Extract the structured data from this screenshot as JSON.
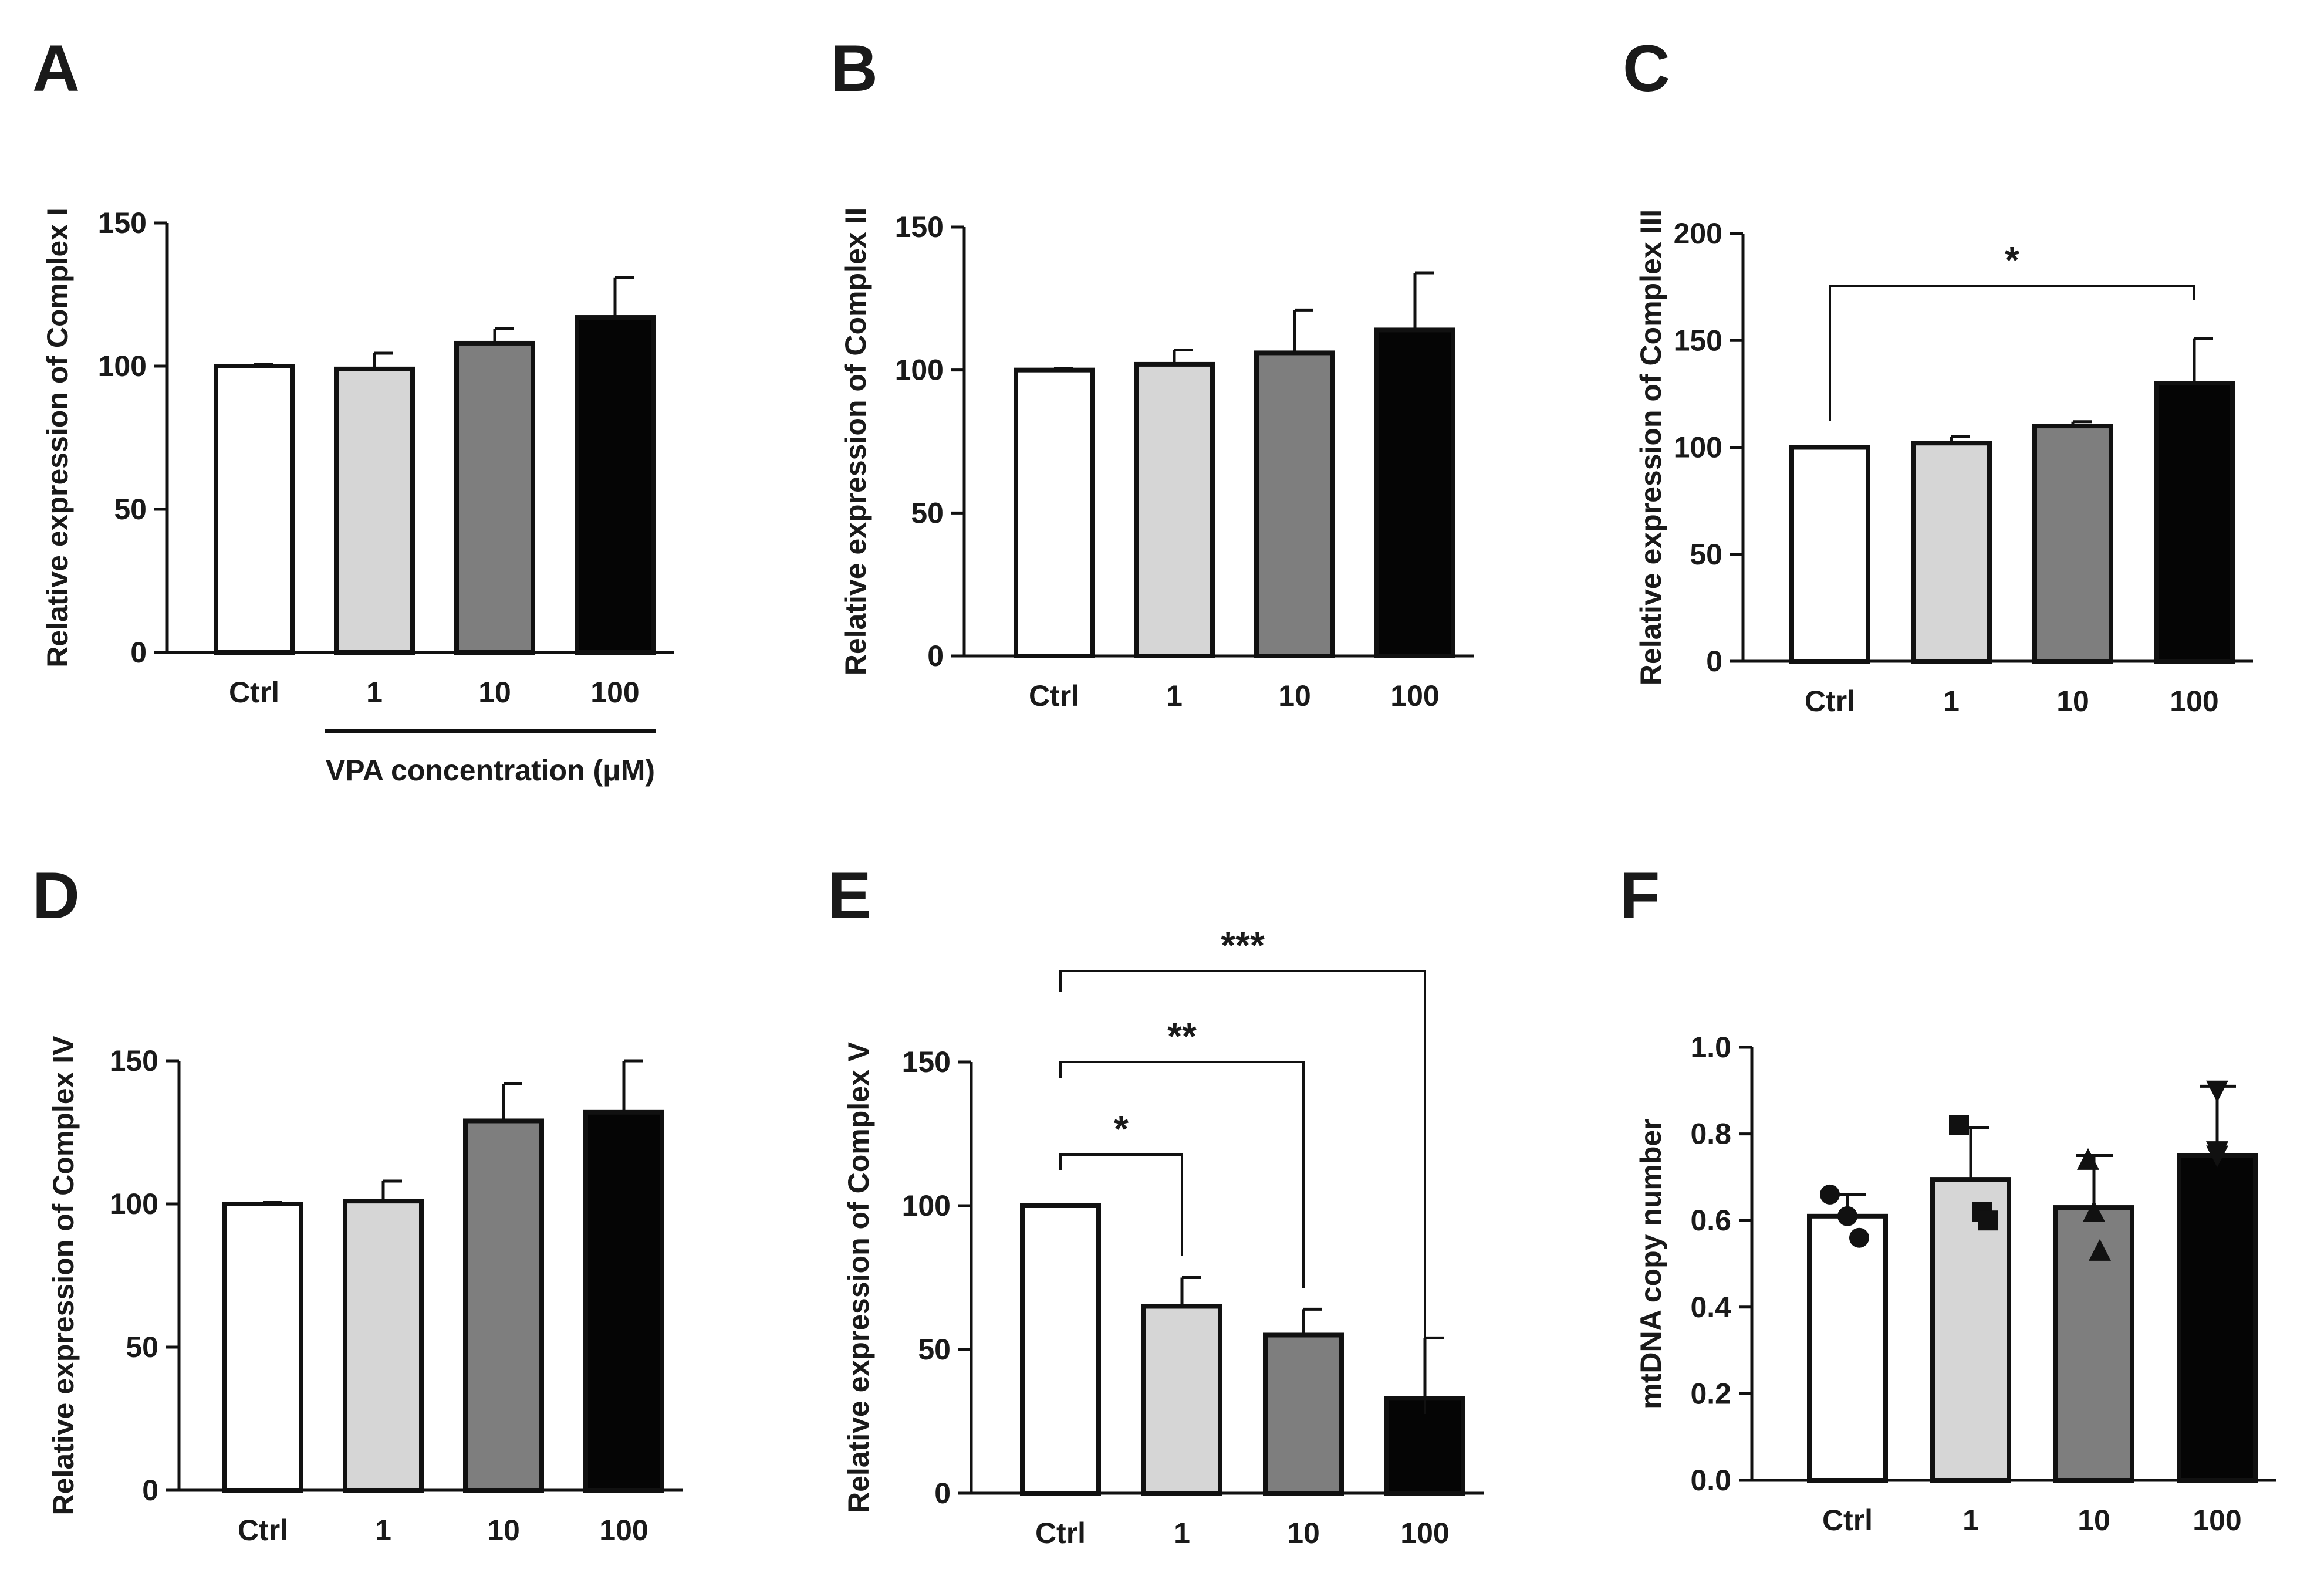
{
  "figure": {
    "bar_fill_colors": [
      "#ffffff",
      "#d6d6d6",
      "#7e7e7e",
      "#050505"
    ],
    "stroke_color": "#111111"
  },
  "chart_data": [
    {
      "panel": "A",
      "type": "bar",
      "categories": [
        "Ctrl",
        "1",
        "10",
        "100"
      ],
      "values": [
        100,
        99,
        108,
        117
      ],
      "errors": [
        0.5,
        5.5,
        5,
        14
      ],
      "ylabel": "Relative expression of Complex I",
      "xlabel": "",
      "ylim": [
        0,
        150
      ],
      "yticks": [
        0,
        50,
        100,
        150
      ],
      "ytick_labels": [
        "0",
        "50",
        "100",
        "150"
      ],
      "group_label": "VPA concentration (μM)",
      "brackets": []
    },
    {
      "panel": "B",
      "type": "bar",
      "categories": [
        "Ctrl",
        "1",
        "10",
        "100"
      ],
      "values": [
        100,
        102,
        106,
        114
      ],
      "errors": [
        0.5,
        5,
        15,
        20
      ],
      "ylabel": "Relative expression of Complex II",
      "xlabel": "",
      "ylim": [
        0,
        150
      ],
      "yticks": [
        0,
        50,
        100,
        150
      ],
      "ytick_labels": [
        "0",
        "50",
        "100",
        "150"
      ],
      "brackets": []
    },
    {
      "panel": "C",
      "type": "bar",
      "categories": [
        "Ctrl",
        "1",
        "10",
        "100"
      ],
      "values": [
        100,
        102,
        110,
        130
      ],
      "errors": [
        0.5,
        3,
        2,
        21
      ],
      "ylabel": "Relative expression of Complex III",
      "xlabel": "",
      "ylim": [
        0,
        200
      ],
      "yticks": [
        0,
        50,
        100,
        150,
        200
      ],
      "ytick_labels": [
        "0",
        "50",
        "100",
        "150",
        "200"
      ],
      "brackets": [
        {
          "from": 0,
          "to": 3,
          "label": "*"
        }
      ]
    },
    {
      "panel": "D",
      "type": "bar",
      "categories": [
        "Ctrl",
        "1",
        "10",
        "100"
      ],
      "values": [
        100,
        101,
        129,
        132
      ],
      "errors": [
        0.5,
        7,
        13,
        18
      ],
      "ylabel": "Relative expression of Complex IV",
      "xlabel": "",
      "ylim": [
        0,
        150
      ],
      "yticks": [
        0,
        50,
        100,
        150
      ],
      "ytick_labels": [
        "0",
        "50",
        "100",
        "150"
      ],
      "brackets": []
    },
    {
      "panel": "E",
      "type": "bar",
      "categories": [
        "Ctrl",
        "1",
        "10",
        "100"
      ],
      "values": [
        100,
        65,
        55,
        33
      ],
      "errors": [
        0.5,
        10,
        9,
        21
      ],
      "ylabel": "Relative expression of Complex V",
      "xlabel": "",
      "ylim": [
        0,
        150
      ],
      "yticks": [
        0,
        50,
        100,
        150
      ],
      "ytick_labels": [
        "0",
        "50",
        "100",
        "150"
      ],
      "brackets": [
        {
          "from": 0,
          "to": 1,
          "label": "*"
        },
        {
          "from": 0,
          "to": 2,
          "label": "**"
        },
        {
          "from": 0,
          "to": 3,
          "label": "***"
        }
      ]
    },
    {
      "panel": "F",
      "type": "bar",
      "categories": [
        "Ctrl",
        "1",
        "10",
        "100"
      ],
      "values": [
        0.61,
        0.695,
        0.63,
        0.75
      ],
      "errors": [
        0.05,
        0.12,
        0.12,
        0.16
      ],
      "ylabel": "mtDNA copy number",
      "xlabel": "",
      "ylim": [
        0,
        1.0
      ],
      "yticks": [
        0,
        0.2,
        0.4,
        0.6,
        0.8,
        1.0
      ],
      "ytick_labels": [
        "0.0",
        "0.2",
        "0.4",
        "0.6",
        "0.8",
        "1.0"
      ],
      "brackets": [],
      "points": [
        {
          "marker": "circle",
          "y": [
            0.66,
            0.61,
            0.56
          ]
        },
        {
          "marker": "square",
          "y": [
            0.82,
            0.62,
            0.6
          ]
        },
        {
          "marker": "triangle",
          "y": [
            0.74,
            0.62,
            0.53
          ]
        },
        {
          "marker": "triangle-down",
          "y": [
            0.9,
            0.76,
            0.75
          ]
        }
      ]
    }
  ]
}
